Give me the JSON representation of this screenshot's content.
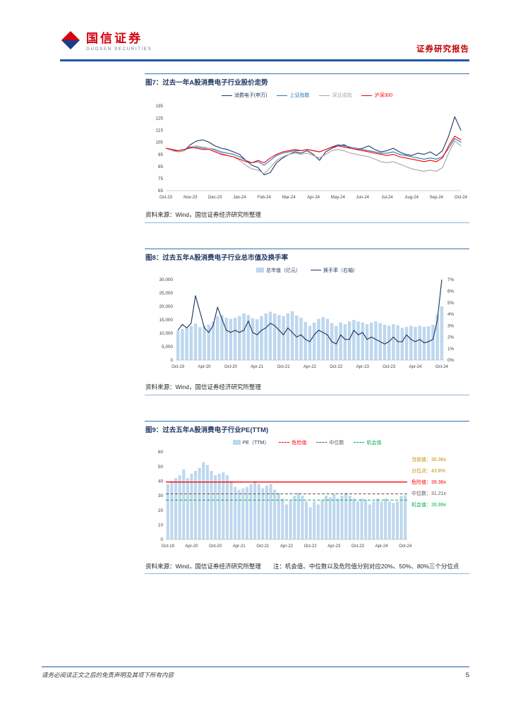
{
  "header": {
    "brand_cn": "国信证券",
    "brand_en": "GUOSEN SECURITIES",
    "report_type": "证券研究报告"
  },
  "figures": {
    "fig7": {
      "title": "图7：过去一年A股消费电子行业股价走势",
      "source": "资料来源：Wind，国信证券经济研究所整理"
    },
    "fig8": {
      "title": "图8：过去五年A股消费电子行业总市值及换手率",
      "source": "资料来源：Wind，国信证券经济研究所整理"
    },
    "fig9": {
      "title": "图9：过去五年A股消费电子行业PE(TTM)",
      "source": "资料来源：Wind，国信证券经济研究所整理　　注：机会值、中位数以及危险值分别对应20%、50%、80%三个分位点"
    }
  },
  "footer": {
    "disclaimer": "请务必阅读正文之后的免责声明及其项下所有内容",
    "page_number": "5"
  },
  "chart_data": [
    {
      "figure": "图7",
      "type": "line",
      "title": "过去一年A股消费电子行业股价走势",
      "x_ticks": [
        "Oct-23",
        "Nov-23",
        "Dec-23",
        "Jan-24",
        "Feb-24",
        "Mar-24",
        "Apr-24",
        "May-24",
        "Jun-24",
        "Jul-24",
        "Aug-24",
        "Sep-24",
        "Oct-24"
      ],
      "ylim": [
        65,
        135
      ],
      "y_ticks": [
        65,
        75,
        85,
        95,
        105,
        115,
        125,
        135
      ],
      "grid": false,
      "legend_position": "top",
      "series": [
        {
          "name": "消费电子(申万)",
          "color": "#1F3864",
          "values": [
            100,
            99,
            97,
            98,
            103,
            106,
            107,
            105,
            102,
            100,
            99,
            97,
            95,
            90,
            86,
            84,
            78,
            80,
            88,
            92,
            95,
            97,
            96,
            98,
            95,
            90,
            97,
            100,
            102,
            103,
            100,
            99,
            100,
            102,
            99,
            97,
            98,
            100,
            97,
            95,
            94,
            96,
            95,
            97,
            94,
            98,
            110,
            126,
            115
          ]
        },
        {
          "name": "上证指数",
          "color": "#2E75B6",
          "values": [
            100,
            99,
            98,
            99,
            100,
            101,
            100,
            100,
            99,
            97,
            96,
            95,
            93,
            90,
            88,
            89,
            86,
            90,
            94,
            96,
            97,
            98,
            98,
            99,
            98,
            97,
            99,
            101,
            103,
            102,
            101,
            100,
            99,
            98,
            97,
            96,
            96,
            97,
            95,
            94,
            93,
            92,
            91,
            92,
            91,
            93,
            100,
            108,
            105
          ]
        },
        {
          "name": "深证成指",
          "color": "#A6A6A6",
          "values": [
            100,
            98,
            97,
            98,
            101,
            102,
            101,
            100,
            98,
            96,
            94,
            93,
            90,
            86,
            83,
            82,
            79,
            84,
            90,
            93,
            95,
            96,
            95,
            96,
            94,
            92,
            95,
            98,
            99,
            98,
            96,
            95,
            94,
            93,
            91,
            89,
            88,
            89,
            87,
            85,
            83,
            82,
            81,
            82,
            81,
            84,
            96,
            106,
            102
          ]
        },
        {
          "name": "沪深300",
          "color": "#FF0000",
          "values": [
            100,
            99,
            98,
            99,
            101,
            100,
            99,
            99,
            97,
            95,
            94,
            93,
            91,
            89,
            88,
            90,
            88,
            92,
            95,
            97,
            98,
            99,
            98,
            99,
            98,
            97,
            99,
            101,
            102,
            101,
            100,
            99,
            98,
            97,
            96,
            95,
            94,
            95,
            93,
            92,
            91,
            90,
            89,
            90,
            89,
            92,
            102,
            110,
            107
          ]
        }
      ]
    },
    {
      "figure": "图8",
      "type": "bar+line",
      "title": "过去五年A股消费电子行业总市值及换手率",
      "x_ticks": [
        "Oct-19",
        "Apr-20",
        "Oct-20",
        "Apr-21",
        "Oct-21",
        "Apr-22",
        "Oct-22",
        "Apr-23",
        "Oct-23",
        "Apr-24",
        "Oct-24"
      ],
      "left_axis": {
        "label": "总市值（亿元）",
        "lim": [
          0,
          30000
        ],
        "ticks": [
          0,
          5000,
          10000,
          15000,
          20000,
          25000,
          30000
        ]
      },
      "right_axis": {
        "label": "换手率（右轴）",
        "lim": [
          0,
          7
        ],
        "ticks": [
          "0%",
          "1%",
          "2%",
          "3%",
          "4%",
          "5%",
          "6%",
          "7%"
        ]
      },
      "bar_series": {
        "name": "总市值（亿元）",
        "color": "#BDD7EE",
        "values": [
          11000,
          11600,
          12200,
          12800,
          13600,
          12200,
          12800,
          13200,
          14400,
          16400,
          16800,
          15800,
          15400,
          15800,
          16400,
          17400,
          16800,
          15600,
          15200,
          16400,
          17400,
          18000,
          17400,
          16800,
          16400,
          17400,
          18200,
          16600,
          15800,
          14200,
          12800,
          14000,
          15400,
          16000,
          15400,
          13800,
          12800,
          14000,
          13400,
          14400,
          15000,
          14400,
          14000,
          13400,
          14000,
          14400,
          13800,
          13200,
          12800,
          13400,
          13000,
          12000,
          12400,
          12800,
          12400,
          12800,
          12400,
          12600,
          13200,
          17000,
          20000
        ]
      },
      "line_series": {
        "name": "换手率（右轴）",
        "color": "#1F3864",
        "values_percent": [
          2.6,
          3.1,
          2.8,
          3.2,
          5.6,
          4.2,
          2.8,
          2.4,
          3.0,
          4.6,
          3.6,
          2.6,
          2.4,
          2.6,
          2.4,
          2.6,
          3.4,
          2.4,
          2.2,
          2.6,
          2.8,
          3.2,
          3.0,
          2.6,
          2.2,
          2.8,
          2.4,
          2.0,
          2.2,
          1.8,
          1.6,
          2.2,
          2.6,
          2.4,
          2.2,
          1.6,
          1.4,
          2.2,
          1.8,
          1.8,
          2.6,
          2.2,
          2.4,
          1.8,
          2.0,
          1.8,
          1.6,
          1.4,
          1.6,
          2.0,
          1.6,
          1.6,
          2.2,
          1.8,
          1.6,
          1.8,
          1.5,
          1.6,
          1.8,
          3.5,
          7.0
        ]
      }
    },
    {
      "figure": "图9",
      "type": "bar",
      "title": "过去五年A股消费电子行业PE(TTM)",
      "x_ticks": [
        "Oct-19",
        "Apr-20",
        "Oct-20",
        "Apr-21",
        "Oct-21",
        "Apr-22",
        "Oct-22",
        "Apr-23",
        "Oct-23",
        "Apr-24",
        "Oct-24"
      ],
      "ylim": [
        0,
        60
      ],
      "y_ticks": [
        0,
        10,
        20,
        30,
        40,
        50,
        60
      ],
      "bar_series": {
        "name": "PE（TTM）",
        "color": "#BDD7EE",
        "values": [
          38,
          40,
          42,
          44,
          48,
          42,
          45,
          47,
          49,
          53,
          51,
          47,
          44,
          45,
          46,
          44,
          40,
          36,
          34,
          35,
          36,
          38,
          40,
          38,
          35,
          37,
          38,
          34,
          32,
          28,
          24,
          27,
          30,
          32,
          30,
          26,
          22,
          26,
          24,
          27,
          30,
          29,
          31,
          28,
          30,
          32,
          30,
          28,
          26,
          28,
          27,
          24,
          26,
          28,
          26,
          28,
          26,
          25,
          26,
          30,
          30.36
        ]
      },
      "reference_lines": [
        {
          "name": "危险值",
          "value": 39.36,
          "color": "#FF0000",
          "style": "solid"
        },
        {
          "name": "中位数",
          "value": 31.21,
          "color": "#595959",
          "style": "dashed"
        },
        {
          "name": "机会值",
          "value": 26.99,
          "color": "#00B050",
          "style": "dashed"
        }
      ],
      "annotations": [
        {
          "label": "当前值：",
          "value": "30.36x",
          "color": "#BF9000"
        },
        {
          "label": "分位点：",
          "value": "43.8%",
          "color": "#BF9000"
        },
        {
          "label": "危险值：",
          "value": "39.36x",
          "color": "#FF0000"
        },
        {
          "label": "中位数：",
          "value": "31.21x",
          "color": "#595959"
        },
        {
          "label": "机会值：",
          "value": "26.99x",
          "color": "#00B050"
        }
      ]
    }
  ]
}
